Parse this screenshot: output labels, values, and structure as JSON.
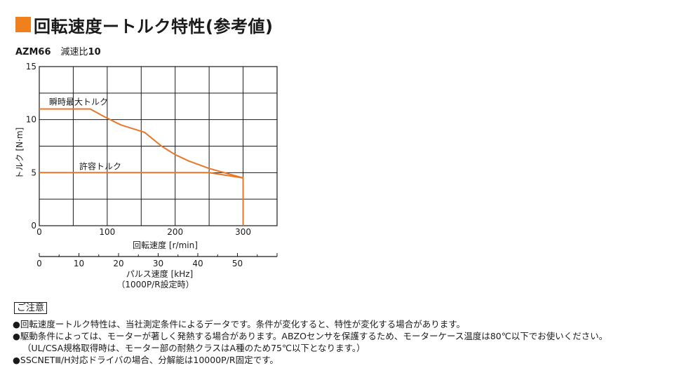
{
  "title": "回転速度ートルク特性(参考値)",
  "model": "AZM66",
  "ratio_label": "減速比",
  "ratio_value": "10",
  "notes_heading": "ご注意",
  "notes": [
    "●回転速度ートルク特性は、当社測定条件によるデータです。条件が変化すると、特性が変化する場合があります。",
    "●駆動条件によっては、モーターが著しく発熱する場合があります。ABZOセンサを保護するため、モーターケース温度は80℃以下でお使いください。",
    "（UL/CSA規格取得時は、モーター部の耐熱クラスはA種のため75℃以下となります。）",
    "●SSCNETⅢ/H対応ドライバの場合、分解能は10000P/R固定です。"
  ],
  "colors": {
    "accent": "#f07f1e",
    "curve": "#e8772a",
    "grid": "#1a1a1a"
  },
  "chart_data": {
    "type": "line",
    "xlabel": "回転速度 [r/min]",
    "ylabel": "トルク [N·m]",
    "xlim": [
      0,
      350
    ],
    "ylim": [
      0,
      15
    ],
    "x_ticks": [
      0,
      100,
      200,
      300
    ],
    "y_ticks": [
      0,
      5,
      10,
      15
    ],
    "grid": true,
    "secondary_x": {
      "label": "パルス速度 [kHz]",
      "sublabel": "（1000P/R設定時）",
      "ticks": [
        0,
        10,
        20,
        30,
        40,
        50
      ],
      "xlim": [
        0,
        60
      ]
    },
    "series": [
      {
        "name": "瞬時最大トルク",
        "x": [
          0,
          75,
          95,
          120,
          155,
          180,
          200,
          220,
          250,
          300
        ],
        "y": [
          11.0,
          11.0,
          10.3,
          9.5,
          8.8,
          7.5,
          6.7,
          6.1,
          5.4,
          4.5
        ]
      },
      {
        "name": "許容トルク",
        "x": [
          0,
          195,
          250,
          300,
          300
        ],
        "y": [
          5.0,
          5.0,
          5.0,
          4.5,
          0.0
        ]
      }
    ]
  }
}
